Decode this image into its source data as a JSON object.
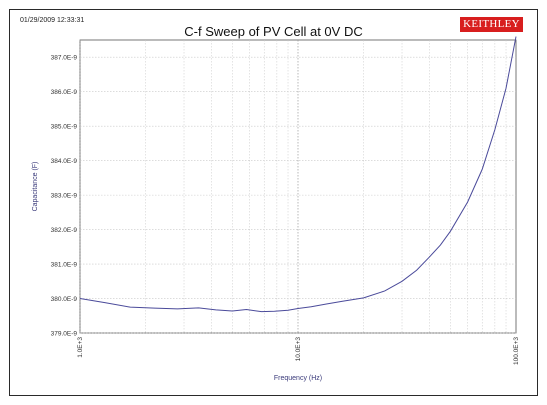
{
  "header": {
    "timestamp": "01/29/2009 12:33:31",
    "title": "C-f Sweep of PV Cell at 0V DC",
    "brand_logo": "KEITHLEY"
  },
  "colors": {
    "series": "#4a4a9a",
    "grid": "#c8c8c8",
    "brand": "#d81e1e"
  },
  "chart_data": {
    "type": "line",
    "title": "C-f Sweep of PV Cell at 0V DC",
    "xlabel": "Frequency (Hz)",
    "ylabel": "Capacitance (F)",
    "xscale": "log",
    "xlim": [
      1000,
      100000
    ],
    "ylim": [
      3.79e-07,
      3.875e-07
    ],
    "grid": true,
    "legend": "none",
    "x_ticks": [
      {
        "value": 1000,
        "label": "1.0E+3"
      },
      {
        "value": 10000,
        "label": "10.0E+3"
      },
      {
        "value": 100000,
        "label": "100.0E+3"
      }
    ],
    "y_ticks": [
      {
        "value": 3.79e-07,
        "label": "379.0E-9"
      },
      {
        "value": 3.8e-07,
        "label": "380.0E-9"
      },
      {
        "value": 3.81e-07,
        "label": "381.0E-9"
      },
      {
        "value": 3.82e-07,
        "label": "382.0E-9"
      },
      {
        "value": 3.83e-07,
        "label": "383.0E-9"
      },
      {
        "value": 3.84e-07,
        "label": "384.0E-9"
      },
      {
        "value": 3.85e-07,
        "label": "385.0E-9"
      },
      {
        "value": 3.86e-07,
        "label": "386.0E-9"
      },
      {
        "value": 3.87e-07,
        "label": "387.0E-9"
      }
    ],
    "series": [
      {
        "x": [
          1000,
          1300,
          1700,
          2200,
          2800,
          3500,
          4200,
          5000,
          5800,
          6800,
          7800,
          9000,
          10000,
          11500,
          13500,
          16000,
          20000,
          25000,
          30000,
          35000,
          40000,
          45000,
          50000,
          60000,
          70000,
          80000,
          90000,
          100000
        ],
        "y": [
          3.8e-07,
          3.7988e-07,
          3.7975e-07,
          3.7972e-07,
          3.797e-07,
          3.7973e-07,
          3.7967e-07,
          3.7964e-07,
          3.7968e-07,
          3.7962e-07,
          3.7963e-07,
          3.7966e-07,
          3.7971e-07,
          3.7976e-07,
          3.7984e-07,
          3.7992e-07,
          3.8002e-07,
          3.8022e-07,
          3.805e-07,
          3.8082e-07,
          3.812e-07,
          3.8155e-07,
          3.8195e-07,
          3.828e-07,
          3.8375e-07,
          3.849e-07,
          3.861e-07,
          3.876e-07
        ]
      }
    ]
  }
}
